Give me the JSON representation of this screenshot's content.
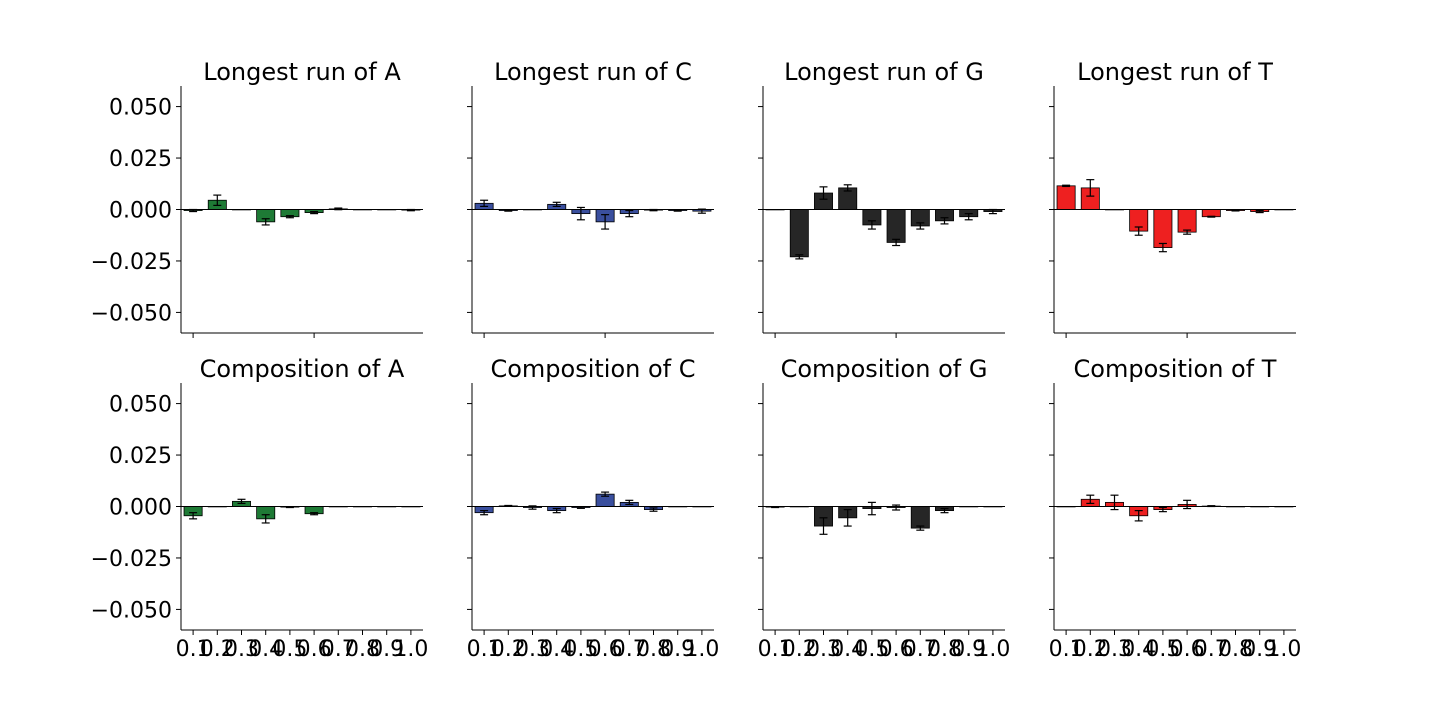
{
  "figure": {
    "colors": {
      "A": "#1e7a35",
      "C": "#3a4f9e",
      "G": "#262626",
      "T": "#ee2020"
    },
    "y_ticks": [
      -0.05,
      -0.025,
      0.0,
      0.025,
      0.05
    ],
    "y_tick_labels": [
      "−0.050",
      "−0.025",
      "0.000",
      "0.025",
      "0.050"
    ],
    "ylim": [
      -0.06,
      0.06
    ],
    "x_tick_labels": [
      "0.1",
      "0.2",
      "0.3",
      "0.4",
      "0.5",
      "0.6",
      "0.7",
      "0.8",
      "0.9",
      "1.0"
    ]
  },
  "chart_data": [
    {
      "type": "bar",
      "title": "Longest run of A",
      "base": "A",
      "x": [
        0.1,
        0.2,
        0.3,
        0.4,
        0.5,
        0.6,
        0.7,
        0.8,
        0.9,
        1.0
      ],
      "values": [
        -0.0005,
        0.0045,
        0.0,
        -0.006,
        -0.0035,
        -0.0015,
        0.0003,
        0.0,
        0.0,
        -0.0003
      ],
      "errors": [
        0.0005,
        0.0025,
        0.0,
        0.0015,
        0.0005,
        0.0005,
        0.0004,
        0.0,
        0.0,
        0.0003
      ]
    },
    {
      "type": "bar",
      "title": "Longest run of C",
      "base": "C",
      "x": [
        0.1,
        0.2,
        0.3,
        0.4,
        0.5,
        0.6,
        0.7,
        0.8,
        0.9,
        1.0
      ],
      "values": [
        0.003,
        -0.0005,
        0.0,
        0.0025,
        -0.002,
        -0.006,
        -0.002,
        -0.0003,
        -0.0005,
        -0.0008
      ],
      "errors": [
        0.0015,
        0.0003,
        0.0,
        0.001,
        0.003,
        0.0035,
        0.0015,
        0.0003,
        0.0003,
        0.001
      ]
    },
    {
      "type": "bar",
      "title": "Longest run of G",
      "base": "G",
      "x": [
        0.1,
        0.2,
        0.3,
        0.4,
        0.5,
        0.6,
        0.7,
        0.8,
        0.9,
        1.0
      ],
      "values": [
        0.0,
        -0.023,
        0.008,
        0.0105,
        -0.0075,
        -0.016,
        -0.008,
        -0.0055,
        -0.0035,
        -0.001
      ],
      "errors": [
        0.0,
        0.001,
        0.003,
        0.0015,
        0.002,
        0.0015,
        0.0015,
        0.0015,
        0.0015,
        0.001
      ]
    },
    {
      "type": "bar",
      "title": "Longest run of T",
      "base": "T",
      "x": [
        0.1,
        0.2,
        0.3,
        0.4,
        0.5,
        0.6,
        0.7,
        0.8,
        0.9,
        1.0
      ],
      "values": [
        0.0115,
        0.0105,
        0.0,
        -0.0105,
        -0.0185,
        -0.011,
        -0.0035,
        -0.0005,
        -0.001,
        0.0
      ],
      "errors": [
        0.0003,
        0.004,
        0.0,
        0.002,
        0.002,
        0.001,
        0.0002,
        0.0002,
        0.0005,
        0.0
      ]
    },
    {
      "type": "bar",
      "title": "Composition of A",
      "base": "A",
      "x": [
        0.1,
        0.2,
        0.3,
        0.4,
        0.5,
        0.6,
        0.7,
        0.8,
        0.9,
        1.0
      ],
      "values": [
        -0.0045,
        0.0,
        0.0025,
        -0.006,
        -0.0003,
        -0.0035,
        0.0,
        0.0,
        0.0,
        0.0
      ],
      "errors": [
        0.0015,
        0.0,
        0.001,
        0.002,
        0.0002,
        0.0005,
        0.0,
        0.0,
        0.0,
        0.0
      ]
    },
    {
      "type": "bar",
      "title": "Composition of C",
      "base": "C",
      "x": [
        0.1,
        0.2,
        0.3,
        0.4,
        0.5,
        0.6,
        0.7,
        0.8,
        0.9,
        1.0
      ],
      "values": [
        -0.003,
        0.0003,
        -0.0005,
        -0.002,
        -0.0005,
        0.006,
        0.002,
        -0.0015,
        0.0,
        0.0
      ],
      "errors": [
        0.001,
        0.0002,
        0.0008,
        0.001,
        0.0004,
        0.001,
        0.001,
        0.0008,
        0.0,
        0.0
      ]
    },
    {
      "type": "bar",
      "title": "Composition of G",
      "base": "G",
      "x": [
        0.1,
        0.2,
        0.3,
        0.4,
        0.5,
        0.6,
        0.7,
        0.8,
        0.9,
        1.0
      ],
      "values": [
        -0.0003,
        0.0,
        -0.0095,
        -0.0055,
        -0.001,
        -0.0005,
        -0.0105,
        -0.002,
        0.0,
        0.0
      ],
      "errors": [
        0.0002,
        0.0,
        0.004,
        0.004,
        0.003,
        0.0012,
        0.001,
        0.001,
        0.0,
        0.0
      ]
    },
    {
      "type": "bar",
      "title": "Composition of T",
      "base": "T",
      "x": [
        0.1,
        0.2,
        0.3,
        0.4,
        0.5,
        0.6,
        0.7,
        0.8,
        0.9,
        1.0
      ],
      "values": [
        0.0,
        0.0035,
        0.002,
        -0.0045,
        -0.0015,
        0.001,
        0.0002,
        0.0,
        0.0,
        0.0
      ],
      "errors": [
        0.0,
        0.002,
        0.0035,
        0.0025,
        0.001,
        0.002,
        0.0002,
        0.0,
        0.0,
        0.0
      ]
    }
  ]
}
